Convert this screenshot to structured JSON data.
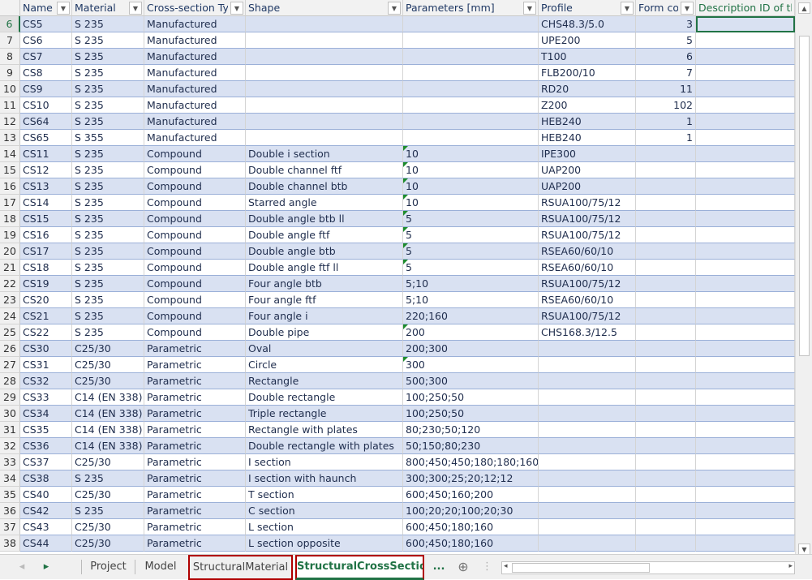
{
  "columns": [
    "Name",
    "Material",
    "Cross-section Typ",
    "Shape",
    "Parameters [mm]",
    "Profile",
    "Form cod",
    "Description ID of th"
  ],
  "rows": [
    [
      "6",
      "CS5",
      "S 235",
      "Manufactured",
      "",
      "",
      "CHS48.3/5.0",
      "3",
      ""
    ],
    [
      "7",
      "CS6",
      "S 235",
      "Manufactured",
      "",
      "",
      "UPE200",
      "5",
      ""
    ],
    [
      "8",
      "CS7",
      "S 235",
      "Manufactured",
      "",
      "",
      "T100",
      "6",
      ""
    ],
    [
      "9",
      "CS8",
      "S 235",
      "Manufactured",
      "",
      "",
      "FLB200/10",
      "7",
      ""
    ],
    [
      "10",
      "CS9",
      "S 235",
      "Manufactured",
      "",
      "",
      "RD20",
      "11",
      ""
    ],
    [
      "11",
      "CS10",
      "S 235",
      "Manufactured",
      "",
      "",
      "Z200",
      "102",
      ""
    ],
    [
      "12",
      "CS64",
      "S 235",
      "Manufactured",
      "",
      "",
      "HEB240",
      "1",
      ""
    ],
    [
      "13",
      "CS65",
      "S 355",
      "Manufactured",
      "",
      "",
      "HEB240",
      "1",
      ""
    ],
    [
      "14",
      "CS11",
      "S 235",
      "Compound",
      "Double i section",
      "10",
      "IPE300",
      "",
      ""
    ],
    [
      "15",
      "CS12",
      "S 235",
      "Compound",
      "Double channel ftf",
      "10",
      "UAP200",
      "",
      ""
    ],
    [
      "16",
      "CS13",
      "S 235",
      "Compound",
      "Double channel btb",
      "10",
      "UAP200",
      "",
      ""
    ],
    [
      "17",
      "CS14",
      "S 235",
      "Compound",
      "Starred angle",
      "10",
      "RSUA100/75/12",
      "",
      ""
    ],
    [
      "18",
      "CS15",
      "S 235",
      "Compound",
      "Double angle btb ll",
      "5",
      "RSUA100/75/12",
      "",
      ""
    ],
    [
      "19",
      "CS16",
      "S 235",
      "Compound",
      "Double angle ftf",
      "5",
      "RSUA100/75/12",
      "",
      ""
    ],
    [
      "20",
      "CS17",
      "S 235",
      "Compound",
      "Double angle btb",
      "5",
      "RSEA60/60/10",
      "",
      ""
    ],
    [
      "21",
      "CS18",
      "S 235",
      "Compound",
      "Double angle ftf ll",
      "5",
      "RSEA60/60/10",
      "",
      ""
    ],
    [
      "22",
      "CS19",
      "S 235",
      "Compound",
      "Four angle btb",
      "5;10",
      "RSUA100/75/12",
      "",
      ""
    ],
    [
      "23",
      "CS20",
      "S 235",
      "Compound",
      "Four angle ftf",
      "5;10",
      "RSEA60/60/10",
      "",
      ""
    ],
    [
      "24",
      "CS21",
      "S 235",
      "Compound",
      "Four angle i",
      "220;160",
      "RSUA100/75/12",
      "",
      ""
    ],
    [
      "25",
      "CS22",
      "S 235",
      "Compound",
      "Double pipe",
      "200",
      "CHS168.3/12.5",
      "",
      ""
    ],
    [
      "26",
      "CS30",
      "C25/30",
      "Parametric",
      "Oval",
      "200;300",
      "",
      "",
      ""
    ],
    [
      "27",
      "CS31",
      "C25/30",
      "Parametric",
      "Circle",
      "300",
      "",
      "",
      ""
    ],
    [
      "28",
      "CS32",
      "C25/30",
      "Parametric",
      "Rectangle",
      "500;300",
      "",
      "",
      ""
    ],
    [
      "29",
      "CS33",
      "C14 (EN 338)",
      "Parametric",
      "Double rectangle",
      "100;250;50",
      "",
      "",
      ""
    ],
    [
      "30",
      "CS34",
      "C14 (EN 338)",
      "Parametric",
      "Triple rectangle",
      "100;250;50",
      "",
      "",
      ""
    ],
    [
      "31",
      "CS35",
      "C14 (EN 338)",
      "Parametric",
      "Rectangle with plates",
      "80;230;50;120",
      "",
      "",
      ""
    ],
    [
      "32",
      "CS36",
      "C14 (EN 338)",
      "Parametric",
      "Double rectangle with plates",
      "50;150;80;230",
      "",
      "",
      ""
    ],
    [
      "33",
      "CS37",
      "C25/30",
      "Parametric",
      "I section",
      "800;450;450;180;180;160",
      "",
      "",
      ""
    ],
    [
      "34",
      "CS38",
      "S 235",
      "Parametric",
      "I section with haunch",
      "300;300;25;20;12;12",
      "",
      "",
      ""
    ],
    [
      "35",
      "CS40",
      "C25/30",
      "Parametric",
      "T section",
      "600;450;160;200",
      "",
      "",
      ""
    ],
    [
      "36",
      "CS42",
      "S 235",
      "Parametric",
      "C section",
      "100;20;20;100;20;30",
      "",
      "",
      ""
    ],
    [
      "37",
      "CS43",
      "C25/30",
      "Parametric",
      "L section",
      "600;450;180;160",
      "",
      "",
      ""
    ],
    [
      "38",
      "CS44",
      "C25/30",
      "Parametric",
      "L section opposite",
      "600;450;180;160",
      "",
      "",
      ""
    ],
    [
      "39",
      "",
      "",
      "",
      "",
      "",
      "",
      "",
      ""
    ]
  ],
  "text_number_rows": [
    "14",
    "15",
    "16",
    "17",
    "18",
    "19",
    "20",
    "21",
    "25",
    "27"
  ],
  "tabs": [
    "Project",
    "Model",
    "StructuralMaterial",
    "StructuralCrossSection"
  ],
  "tab_more": "...",
  "colors": {
    "accent": "#217346",
    "band": "#d9e1f2",
    "highlight_box": "#b00000"
  }
}
